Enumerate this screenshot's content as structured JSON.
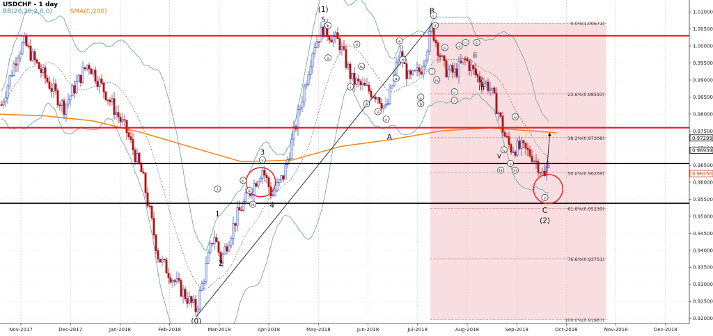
{
  "chart_data": {
    "type": "candlestick",
    "title": "USDCHF - 1 day",
    "indicators": [
      {
        "name": "BB(20,20,2,0,0)",
        "color": "#4a9a9a"
      },
      {
        "name": "SMA(C,200)",
        "color": "#f08a1e"
      }
    ],
    "x_labels": [
      "Nov-2017",
      "Dec-2017",
      "Jan-2018",
      "Feb-2018",
      "Mar-2018",
      "Apr-2018",
      "May-2018",
      "Jun-2018",
      "Jul-2018",
      "Aug-2018",
      "Sep-2018",
      "Oct-2018",
      "Nov-2018",
      "Dec-2018"
    ],
    "y_labels": [
      "1.01000",
      "1.00500",
      "1.00000",
      "0.99500",
      "0.99000",
      "0.98500",
      "0.98000",
      "0.97500",
      "0.97000",
      "0.96500",
      "0.96000",
      "0.95500",
      "0.95000",
      "0.94500",
      "0.94000",
      "0.93500",
      "0.93000",
      "0.92500",
      "0.92000"
    ],
    "ylim": [
      0.9185,
      1.0135
    ],
    "price_tags": [
      {
        "label": "0.97299",
        "value": 0.97299,
        "color": "#000000"
      },
      {
        "label": "0.96939",
        "value": 0.96939,
        "color": "#000000"
      },
      {
        "label": "0.96250",
        "value": 0.9625,
        "color": "#c0392b"
      }
    ],
    "horizontal_levels": [
      {
        "value": 1.003,
        "color": "#e8141e",
        "width": 2.2
      },
      {
        "value": 0.976,
        "color": "#e8141e",
        "width": 2.2
      },
      {
        "value": 0.9655,
        "color": "#111111",
        "width": 1.8
      },
      {
        "value": 0.9538,
        "color": "#111111",
        "width": 1.8
      }
    ],
    "fibonacci": [
      {
        "label": "0.0%(1.00671)",
        "value": 1.00671
      },
      {
        "label": "23.6%(0.98593)",
        "value": 0.98593
      },
      {
        "label": "38.2%(0.97308)",
        "value": 0.97308
      },
      {
        "label": "50.0%(0.96269)",
        "value": 0.96269
      },
      {
        "label": "61.8%(0.95230)",
        "value": 0.9523
      },
      {
        "label": "76.6%(0.93751)",
        "value": 0.93751
      },
      {
        "label": "100.0%(0.91967)",
        "value": 0.91967
      }
    ],
    "fib_zone": {
      "x_start": "2018-07-09",
      "x_end": "2018-10-26",
      "top": 1.00671,
      "bottom": 0.91967
    },
    "wave_labels": [
      {
        "text": "(0)",
        "x": "2018-02-16",
        "y": 0.9185,
        "circled": false
      },
      {
        "text": "1",
        "x": "2018-02-28",
        "y": 0.95,
        "circled": false
      },
      {
        "text": "2",
        "x": "2018-03-02",
        "y": 0.9355,
        "circled": false
      },
      {
        "text": "3",
        "x": "2018-03-28",
        "y": 0.968,
        "circled": false
      },
      {
        "text": "4",
        "x": "2018-04-03",
        "y": 0.9525,
        "circled": false
      },
      {
        "text": "5",
        "x": "2018-05-04",
        "y": 1.007,
        "circled": false
      },
      {
        "text": "(1)",
        "x": "2018-05-04",
        "y": 1.01,
        "circled": false
      },
      {
        "text": "A",
        "x": "2018-06-14",
        "y": 0.9725,
        "circled": false
      },
      {
        "text": "B",
        "x": "2018-07-10",
        "y": 1.0095,
        "circled": false
      },
      {
        "text": "C",
        "x": "2018-09-18",
        "y": 0.951,
        "circled": false
      },
      {
        "text": "(2)",
        "x": "2018-09-18",
        "y": 0.948,
        "circled": false
      },
      {
        "text": "i",
        "x": "2018-02-28",
        "y": 0.9575,
        "circled": true
      },
      {
        "text": "ii",
        "x": "2018-03-16",
        "y": 0.96,
        "circled": true
      },
      {
        "text": "iii",
        "x": "2018-03-20",
        "y": 0.957,
        "circled": true
      },
      {
        "text": "iv",
        "x": "2018-03-22",
        "y": 0.953,
        "circled": true
      },
      {
        "text": "v",
        "x": "2018-03-28",
        "y": 0.966,
        "circled": true
      },
      {
        "text": "b",
        "x": "2018-05-07",
        "y": 1.0055,
        "circled": true
      },
      {
        "text": "a",
        "x": "2018-05-07",
        "y": 0.996,
        "circled": true
      },
      {
        "text": "ii",
        "x": "2018-05-25",
        "y": 1.0,
        "circled": true
      },
      {
        "text": "iv",
        "x": "2018-05-28",
        "y": 0.9935,
        "circled": true
      },
      {
        "text": "i",
        "x": "2018-05-21",
        "y": 0.9875,
        "circled": true
      },
      {
        "text": "iii",
        "x": "2018-05-31",
        "y": 0.9825,
        "circled": true
      },
      {
        "text": "v",
        "x": "2018-06-07",
        "y": 0.9802,
        "circled": true
      },
      {
        "text": "c",
        "x": "2018-06-12",
        "y": 0.978,
        "circled": true
      },
      {
        "text": "a",
        "x": "2018-06-20",
        "y": 1.001,
        "circled": true
      },
      {
        "text": "b",
        "x": "2018-06-22",
        "y": 0.9955,
        "circled": true
      },
      {
        "text": "a",
        "x": "2018-06-18",
        "y": 0.99,
        "circled": true
      },
      {
        "text": "c",
        "x": "2018-07-03",
        "y": 0.9845,
        "circled": true
      },
      {
        "text": "b",
        "x": "2018-07-03",
        "y": 0.9825,
        "circled": true
      },
      {
        "text": "c",
        "x": "2018-07-11",
        "y": 1.0085,
        "circled": true
      },
      {
        "text": "ii",
        "x": "2018-07-12",
        "y": 1.0055,
        "circled": true
      },
      {
        "text": "i",
        "x": "2018-07-10",
        "y": 0.992,
        "circled": true
      },
      {
        "text": "iii",
        "x": "2018-07-13",
        "y": 0.9895,
        "circled": true
      },
      {
        "text": "iv",
        "x": "2018-07-18",
        "y": 0.999,
        "circled": true
      },
      {
        "text": "iv",
        "x": "2018-07-27",
        "y": 0.9995,
        "circled": true
      },
      {
        "text": "ii",
        "x": "2018-07-31",
        "y": 1.0005,
        "circled": true
      },
      {
        "text": "iii",
        "x": "2018-08-07",
        "y": 1.0005,
        "circled": true
      },
      {
        "text": "v",
        "x": "2018-07-24",
        "y": 0.986,
        "circled": true
      },
      {
        "text": "i",
        "x": "2018-07-24",
        "y": 0.9835,
        "circled": true
      },
      {
        "text": "ii",
        "x": "2018-08-06",
        "y": 0.9965,
        "circled": false
      },
      {
        "text": "i",
        "x": "2018-08-07",
        "y": 0.9915,
        "circled": false
      },
      {
        "text": "iv",
        "x": "2018-08-09",
        "y": 0.9895,
        "circled": false
      },
      {
        "text": "iii",
        "x": "2018-08-10",
        "y": 0.987,
        "circled": false
      },
      {
        "text": "iv",
        "x": "2018-08-31",
        "y": 0.9787,
        "circled": true
      },
      {
        "text": "iv",
        "x": "2018-08-24",
        "y": 0.969,
        "circled": true
      },
      {
        "text": "v",
        "x": "2018-08-21",
        "y": 0.967,
        "circled": false
      },
      {
        "text": "v",
        "x": "2018-08-28",
        "y": 0.965,
        "circled": true
      },
      {
        "text": "iii",
        "x": "2018-08-22",
        "y": 0.963,
        "circled": true
      },
      {
        "text": "iii",
        "x": "2018-08-31",
        "y": 0.963,
        "circled": true
      },
      {
        "text": "v",
        "x": "2018-09-18",
        "y": 0.955,
        "circled": true
      }
    ],
    "trendlines": [
      {
        "from": [
          "2018-02-16",
          0.9205
        ],
        "to": [
          "2018-07-10",
          1.0065
        ],
        "color": "#222222"
      },
      {
        "from": [
          "2018-09-19",
          0.9625
        ],
        "to": [
          "2018-09-21",
          0.9745
        ],
        "color": "#111111",
        "arrow": true
      }
    ],
    "highlight_circles": [
      {
        "x": "2018-03-27",
        "y": 0.96,
        "color": "#e8141e"
      },
      {
        "x": "2018-09-20",
        "y": 0.958,
        "color": "#e8141e"
      }
    ]
  }
}
